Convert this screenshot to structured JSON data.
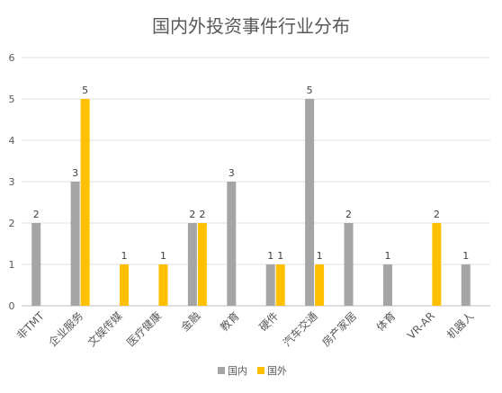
{
  "chart_data": {
    "type": "bar",
    "title": "国内外投资事件行业分布",
    "xlabel": "",
    "ylabel": "",
    "ylim": [
      0,
      6
    ],
    "yticks": [
      0,
      1,
      2,
      3,
      4,
      5,
      6
    ],
    "grid": true,
    "legend_position": "bottom",
    "categories": [
      "非TMT",
      "企业服务",
      "文娱传媒",
      "医疗健康",
      "金融",
      "教育",
      "硬件",
      "汽车交通",
      "房产家居",
      "体育",
      "VR-AR",
      "机器人"
    ],
    "series": [
      {
        "name": "国内",
        "color": "#A5A5A5",
        "values": [
          2,
          3,
          0,
          0,
          2,
          3,
          1,
          5,
          2,
          1,
          0,
          1
        ]
      },
      {
        "name": "国外",
        "color": "#FFC000",
        "values": [
          0,
          5,
          1,
          1,
          2,
          0,
          1,
          1,
          0,
          0,
          2,
          0
        ]
      }
    ]
  }
}
